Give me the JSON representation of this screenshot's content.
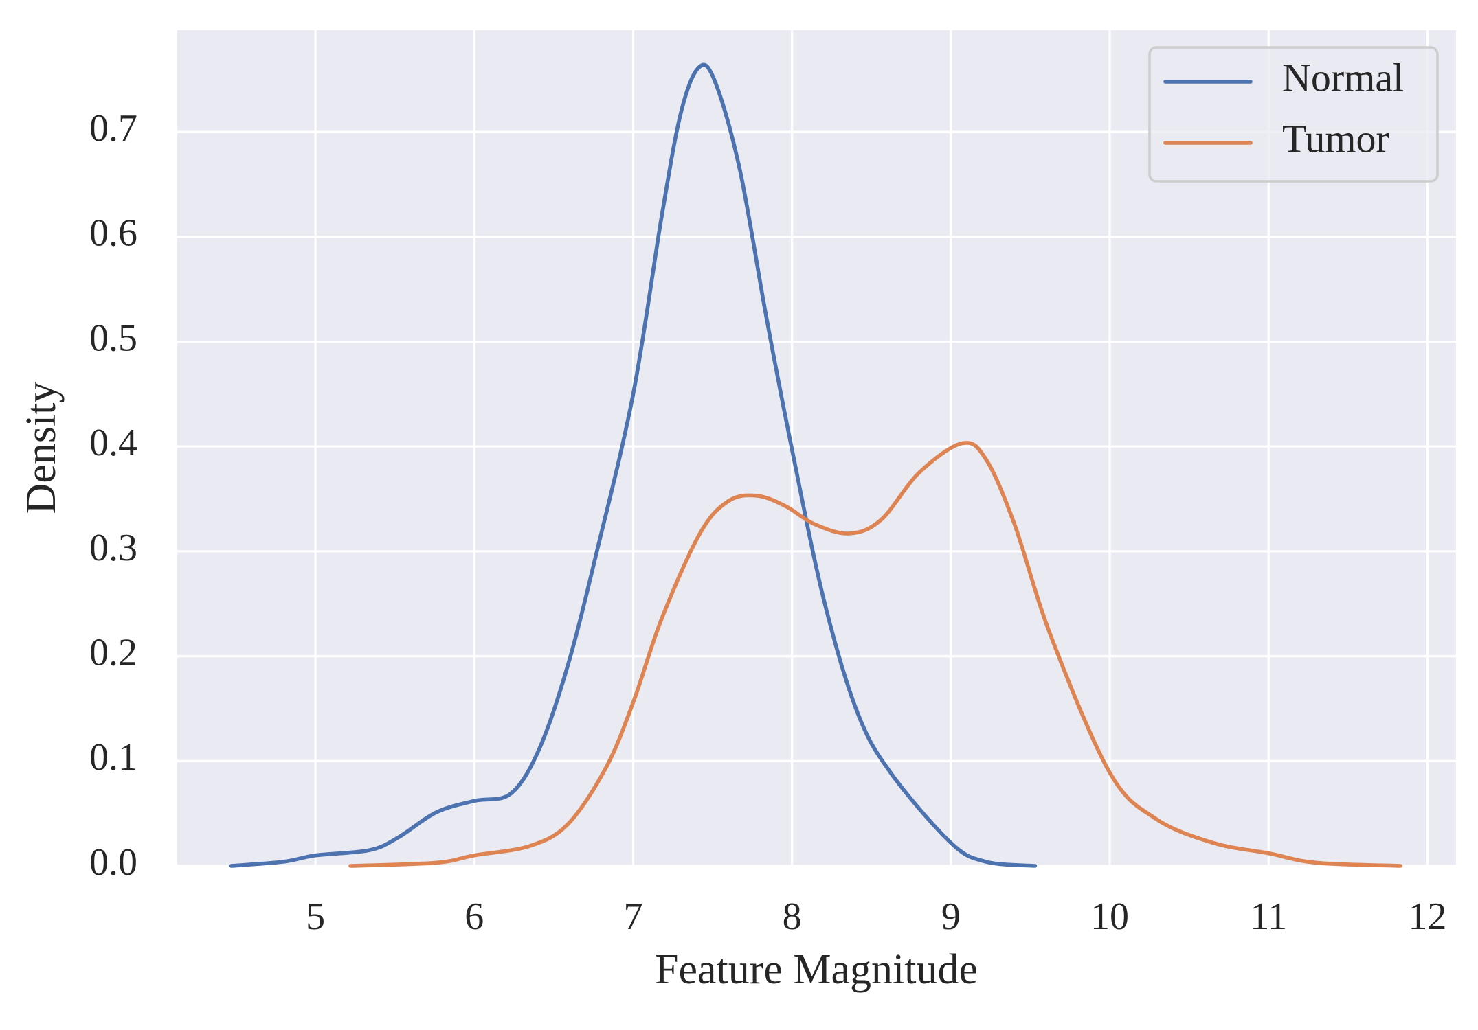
{
  "chart_data": {
    "type": "line",
    "title": "",
    "xlabel": "Feature Magnitude",
    "ylabel": "Density",
    "xlim": [
      4.13,
      12.18
    ],
    "ylim": [
      0,
      0.797
    ],
    "xticks": [
      5,
      6,
      7,
      8,
      9,
      10,
      11,
      12
    ],
    "xtick_labels": [
      "5",
      "6",
      "7",
      "8",
      "9",
      "10",
      "11",
      "12"
    ],
    "yticks": [
      0.0,
      0.1,
      0.2,
      0.3,
      0.4,
      0.5,
      0.6,
      0.7
    ],
    "ytick_labels": [
      "0.0",
      "0.1",
      "0.2",
      "0.3",
      "0.4",
      "0.5",
      "0.6",
      "0.7"
    ],
    "grid": true,
    "legend": "top-right",
    "background_color": "#eaeaf2",
    "series": [
      {
        "name": "Normal",
        "color": "#4c72b0",
        "x": [
          4.47,
          4.8,
          5.0,
          5.34,
          5.52,
          5.76,
          6.0,
          6.23,
          6.41,
          6.59,
          6.77,
          7.0,
          7.18,
          7.3,
          7.41,
          7.51,
          7.67,
          7.84,
          8.0,
          8.2,
          8.41,
          8.62,
          9.0,
          9.22,
          9.53
        ],
        "y": [
          0.0,
          0.004,
          0.01,
          0.015,
          0.027,
          0.051,
          0.062,
          0.069,
          0.112,
          0.192,
          0.299,
          0.45,
          0.62,
          0.718,
          0.761,
          0.75,
          0.665,
          0.522,
          0.397,
          0.254,
          0.147,
          0.089,
          0.022,
          0.004,
          0.0
        ]
      },
      {
        "name": "Tumor",
        "color": "#dd8452",
        "x": [
          5.22,
          5.76,
          6.0,
          6.35,
          6.59,
          6.83,
          7.0,
          7.18,
          7.42,
          7.6,
          7.78,
          7.96,
          8.14,
          8.36,
          8.56,
          8.8,
          9.07,
          9.22,
          9.4,
          9.63,
          10.0,
          10.29,
          10.65,
          11.0,
          11.3,
          11.83
        ],
        "y": [
          0.0,
          0.003,
          0.01,
          0.019,
          0.04,
          0.094,
          0.156,
          0.236,
          0.317,
          0.348,
          0.353,
          0.343,
          0.326,
          0.317,
          0.33,
          0.375,
          0.403,
          0.388,
          0.326,
          0.219,
          0.089,
          0.045,
          0.022,
          0.012,
          0.003,
          0.0
        ]
      }
    ]
  }
}
